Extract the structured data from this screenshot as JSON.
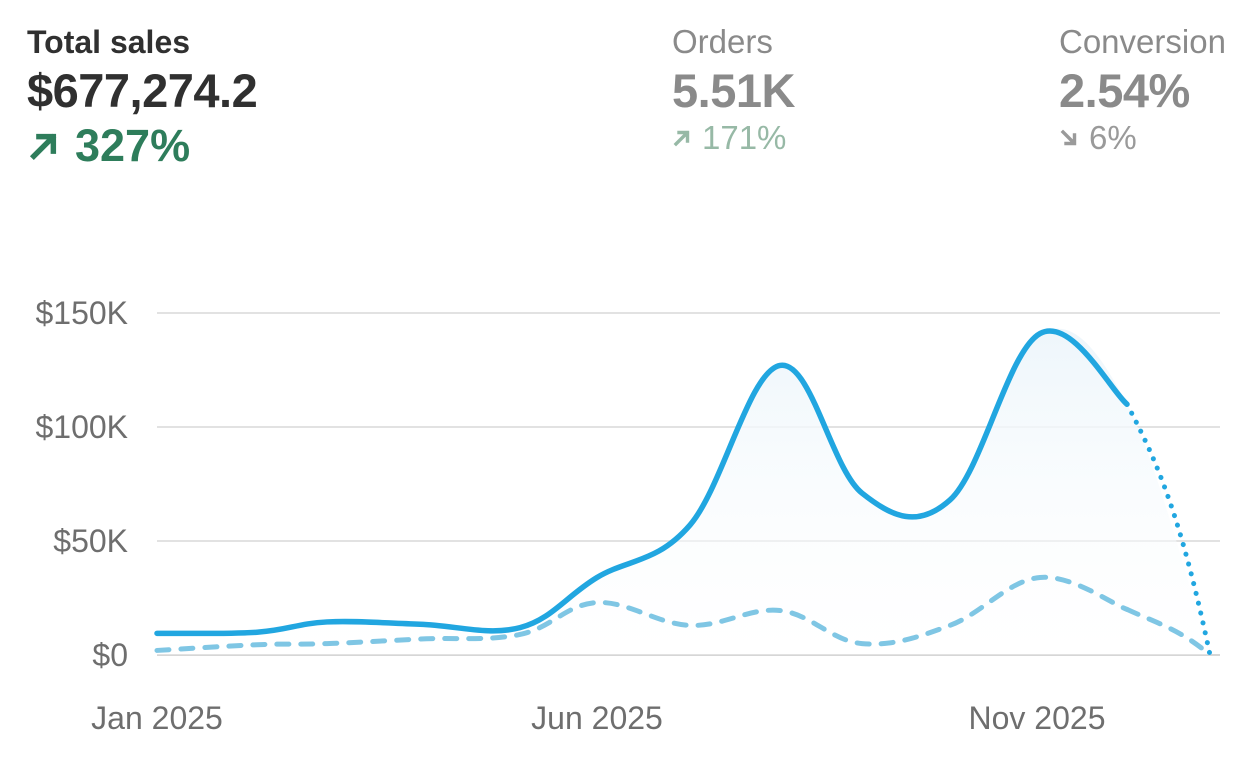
{
  "metrics": {
    "total_sales": {
      "label": "Total sales",
      "value": "$677,274.2",
      "change": "327%",
      "direction": "up"
    },
    "orders": {
      "label": "Orders",
      "value": "5.51K",
      "change": "171%",
      "direction": "up"
    },
    "conversion": {
      "label": "Conversion",
      "value": "2.54%",
      "change": "6%",
      "direction": "down"
    }
  },
  "colors": {
    "current_line": "#21a6e0",
    "previous_line": "#7fc6e4",
    "gridline": "#e2e2e2",
    "area_fill": "#eef6fb",
    "positive": "#2e7d5b"
  },
  "chart_data": {
    "type": "line",
    "x": [
      "Jan 2025",
      "Feb 2025",
      "Mar 2025",
      "Apr 2025",
      "May 2025",
      "Jun 2025",
      "Jul 2025",
      "Aug 2025",
      "Sep 2025",
      "Oct 2025",
      "Nov 2025",
      "Dec 2025"
    ],
    "x_tick_labels": [
      "Jan 2025",
      "Jun 2025",
      "Nov 2025"
    ],
    "y_tick_labels": [
      "$0",
      "$50K",
      "$100K",
      "$150K"
    ],
    "ylim": [
      0,
      150000
    ],
    "grid": true,
    "series": [
      {
        "values": [
          9500,
          10000,
          14500,
          13500,
          12000,
          34000,
          57000,
          127000,
          71000,
          68000,
          141000,
          110000
        ],
        "style": "solid",
        "partial_end": {
          "x": "Dec 2025",
          "value": 0
        }
      },
      {
        "values": [
          2000,
          4500,
          5000,
          7000,
          9000,
          23000,
          13000,
          19500,
          5000,
          13000,
          34000,
          20000
        ],
        "style": "dashed",
        "partial_end": {
          "x": "Dec 2025",
          "value": 0
        }
      }
    ]
  }
}
